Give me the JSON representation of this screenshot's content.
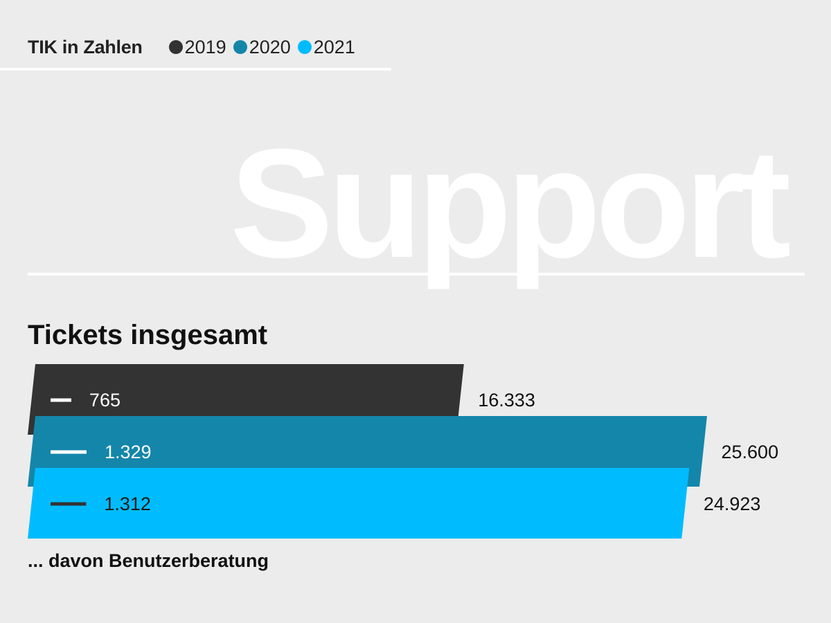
{
  "header": {
    "title": "TIK in Zahlen"
  },
  "legend": [
    {
      "label": "2019",
      "color": "#333333"
    },
    {
      "label": "2020",
      "color": "#1486aa"
    },
    {
      "label": "2021",
      "color": "#00bcff"
    }
  ],
  "watermark": "Support",
  "chart_title": "Tickets insgesamt",
  "footnote": "... davon Benutzerberatung",
  "chart_data": {
    "type": "bar",
    "orientation": "horizontal",
    "title": "Tickets insgesamt",
    "subtitle": "",
    "categories": [
      "2019",
      "2020",
      "2021"
    ],
    "series": [
      {
        "name": "Tickets insgesamt",
        "values": [
          16333,
          25600,
          24923
        ],
        "labels": [
          "16.333",
          "25.600",
          "24.923"
        ]
      },
      {
        "name": "... davon Benutzerberatung",
        "values": [
          765,
          1329,
          1312
        ],
        "labels": [
          "765",
          "1.329",
          "1.312"
        ]
      }
    ],
    "colors": [
      "#333333",
      "#1486aa",
      "#00bcff"
    ],
    "marker_colors": [
      "#ffffff",
      "#ffffff",
      "#333333"
    ],
    "inner_label_colors": [
      "#ffffff",
      "#ffffff",
      "#1a1a1a"
    ],
    "xlim": [
      0,
      25600
    ],
    "grid": false,
    "axes_visible": false,
    "legend_position": "top"
  }
}
